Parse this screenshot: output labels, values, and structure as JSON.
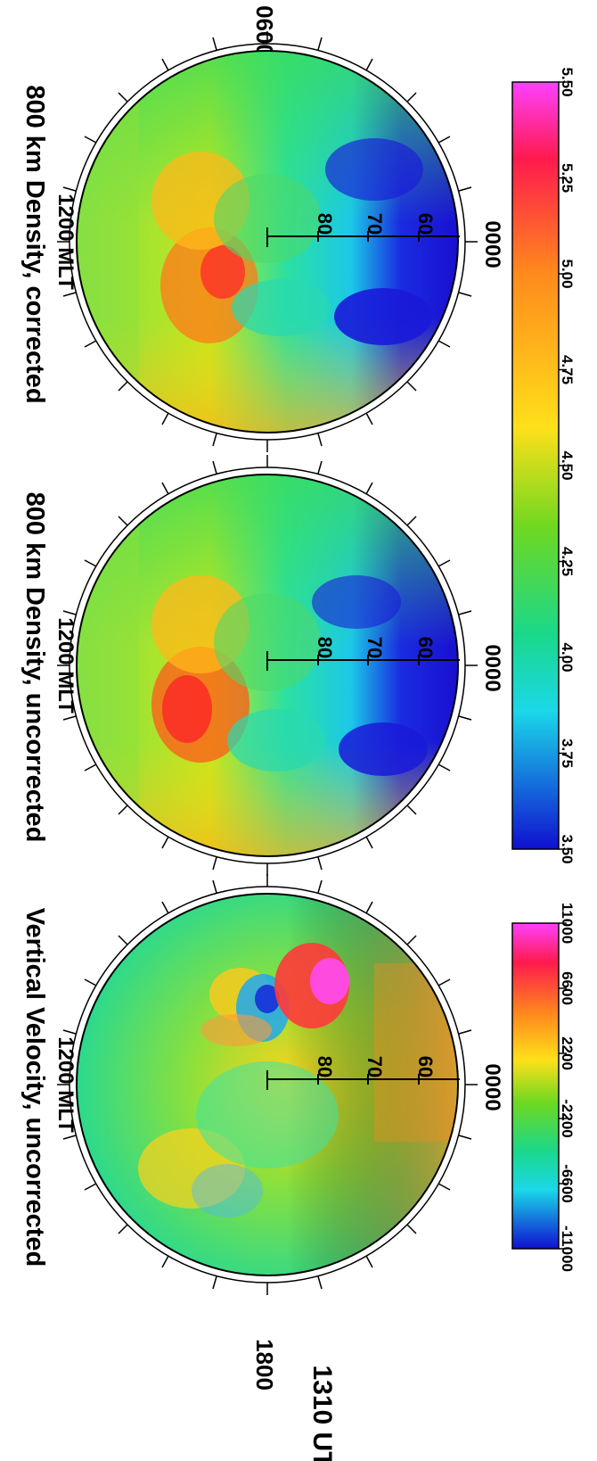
{
  "figure": {
    "time_label": "1310 UT",
    "mlt_left": "1800",
    "mlt_right": "0600"
  },
  "chart_data": [
    {
      "type": "heatmap",
      "projection": "polar",
      "title": "Vertical Velocity, uncorrected",
      "subtitle": "1200 MLT",
      "bottom_label": "0000",
      "latitude_labels": [
        "80",
        "70",
        "60"
      ],
      "colorbar": {
        "colormap": "rainbow",
        "range": [
          -11000,
          11000
        ],
        "ticks": [
          "-11000",
          "-6600",
          "-2200",
          "2200",
          "6600",
          "11000"
        ]
      }
    },
    {
      "type": "heatmap",
      "projection": "polar",
      "title": "800 km Density, uncorrected",
      "subtitle": "1200 MLT",
      "bottom_label": "0000",
      "latitude_labels": [
        "80",
        "70",
        "60"
      ]
    },
    {
      "type": "heatmap",
      "projection": "polar",
      "title": "800 km Density, corrected",
      "subtitle": "1200 MLT",
      "bottom_label": "0000",
      "latitude_labels": [
        "80",
        "70",
        "60"
      ],
      "colorbar": {
        "colormap": "rainbow",
        "range": [
          3.5,
          5.5
        ],
        "ticks": [
          "3.50",
          "3.75",
          "4.00",
          "4.25",
          "4.50",
          "4.75",
          "5.00",
          "5.25",
          "5.50"
        ]
      }
    }
  ]
}
